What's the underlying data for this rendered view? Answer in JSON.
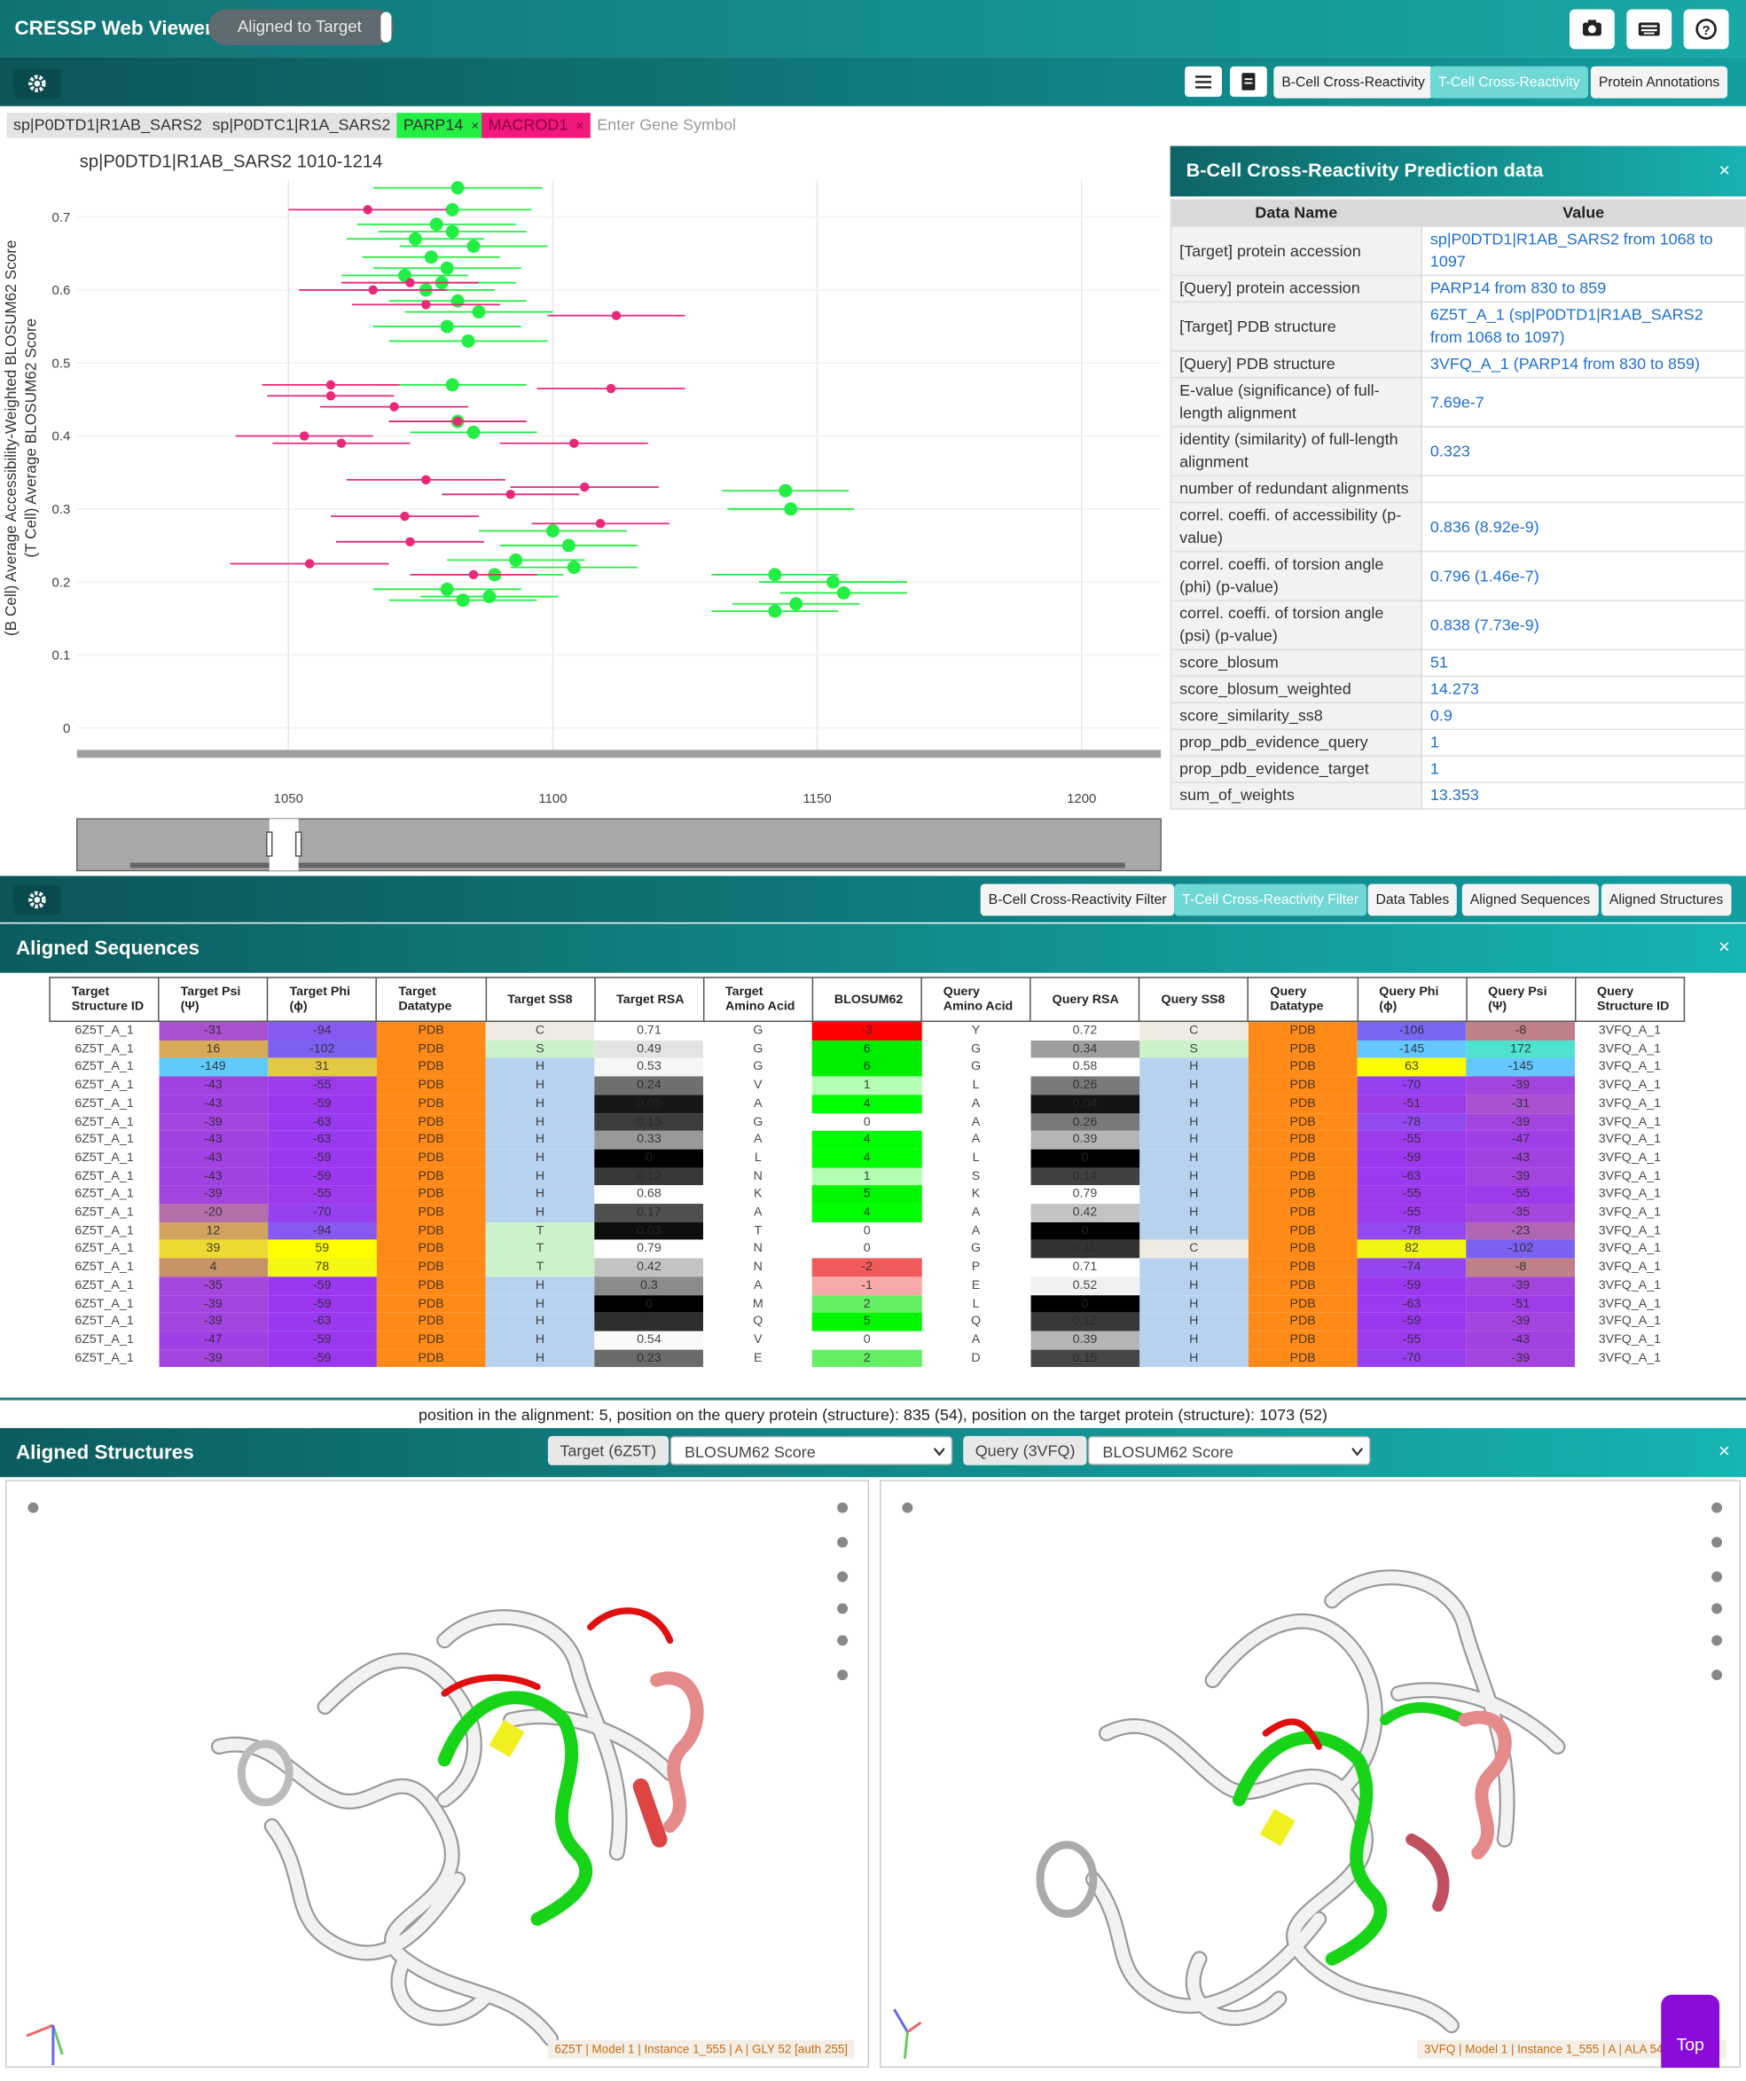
{
  "header": {
    "title": "CRESSP Web Viewer",
    "toggle": "Aligned to Target"
  },
  "toolbar1": {
    "buttons": [
      "B-Cell Cross-Reactivity",
      "T-Cell Cross-Reactivity",
      "Protein Annotations"
    ]
  },
  "tags": [
    "sp|P0DTD1|R1AB_SARS2",
    "sp|P0DTC1|R1A_SARS2",
    "PARP14",
    "MACROD1"
  ],
  "gene_placeholder": "Enter Gene Symbol",
  "plot": {
    "type": "scatter",
    "title": "sp|P0DTD1|R1AB_SARS2 1010-1214",
    "ylabel": [
      "(B Cell) Average Accessibility-Weighted BLOSUM62 Score",
      "(T Cell) Average BLOSUM62 Score"
    ],
    "xlim": [
      1010,
      1215
    ],
    "ylim": [
      -0.03,
      0.75
    ],
    "xticks": [
      1050,
      1100,
      1150,
      1200
    ],
    "yticks": [
      0,
      0.1,
      0.2,
      0.3,
      0.4,
      0.5,
      0.6,
      0.7
    ],
    "grid": true,
    "series": [
      {
        "color": "#22ee44",
        "x": [
          1082,
          1081,
          1078,
          1081,
          1074,
          1085,
          1077,
          1080,
          1072,
          1079,
          1076,
          1082,
          1086,
          1080,
          1084,
          1081,
          1082,
          1085,
          1100,
          1103,
          1093,
          1104,
          1089,
          1080,
          1088,
          1083,
          1144,
          1145,
          1142,
          1153,
          1155,
          1146,
          1142
        ],
        "values": [
          0.74,
          0.71,
          0.69,
          0.68,
          0.67,
          0.66,
          0.645,
          0.63,
          0.62,
          0.61,
          0.6,
          0.585,
          0.57,
          0.55,
          0.53,
          0.47,
          0.42,
          0.405,
          0.27,
          0.25,
          0.23,
          0.22,
          0.21,
          0.19,
          0.18,
          0.175,
          0.325,
          0.3,
          0.21,
          0.2,
          0.185,
          0.17,
          0.16
        ],
        "xerr": [
          16,
          15,
          15,
          14,
          13,
          14,
          13,
          14,
          12,
          14,
          13,
          13,
          14,
          14,
          15,
          14,
          13,
          12,
          14,
          13,
          13,
          12,
          13,
          14,
          13,
          14,
          12,
          12,
          12,
          14,
          12,
          12,
          12
        ]
      },
      {
        "color": "#e8287a",
        "x": [
          1065,
          1112,
          1066,
          1073,
          1076,
          1058,
          1111,
          1058,
          1070,
          1082,
          1053,
          1104,
          1060,
          1076,
          1106,
          1092,
          1072,
          1109,
          1073,
          1054,
          1085
        ],
        "values": [
          0.71,
          0.565,
          0.6,
          0.61,
          0.58,
          0.47,
          0.465,
          0.455,
          0.44,
          0.42,
          0.4,
          0.39,
          0.39,
          0.34,
          0.33,
          0.32,
          0.29,
          0.28,
          0.255,
          0.225,
          0.21
        ],
        "xerr": [
          15,
          13,
          14,
          13,
          14,
          13,
          14,
          12,
          14,
          13,
          13,
          14,
          13,
          15,
          14,
          13,
          14,
          13,
          14,
          15,
          12
        ]
      }
    ]
  },
  "info_panel": {
    "title": "B-Cell Cross-Reactivity Prediction data",
    "columns": [
      "Data Name",
      "Value"
    ],
    "rows": [
      [
        "[Target] protein accession",
        "sp|P0DTD1|R1AB_SARS2 from 1068 to 1097"
      ],
      [
        "[Query] protein accession",
        "PARP14 from 830 to 859"
      ],
      [
        "[Target] PDB structure",
        "6Z5T_A_1 (sp|P0DTD1|R1AB_SARS2 from 1068 to 1097)"
      ],
      [
        "[Query] PDB structure",
        "3VFQ_A_1 (PARP14 from 830 to 859)"
      ],
      [
        "E-value (significance) of full-length alignment",
        "7.69e-7"
      ],
      [
        "identity (similarity) of full-length alignment",
        0.323
      ],
      [
        "number of redundant alignments"
      ],
      [
        "correl. coeffi. of accessibility (p-value)",
        "0.836 (8.92e-9)"
      ],
      [
        "correl. coeffi. of torsion angle (phi) (p-value)",
        "0.796 (1.46e-7)"
      ],
      [
        "correl. coeffi. of torsion angle (psi) (p-value)",
        "0.838 (7.73e-9)"
      ],
      [
        "score_blosum",
        51
      ],
      [
        "score_blosum_weighted",
        14.273
      ],
      [
        "score_similarity_ss8",
        0.9
      ],
      [
        "prop_pdb_evidence_query",
        1
      ],
      [
        "prop_pdb_evidence_target",
        1
      ],
      [
        "sum_of_weights",
        13.353
      ]
    ]
  },
  "toolbar2": {
    "buttons": [
      "B-Cell Cross-Reactivity Filter",
      "T-Cell Cross-Reactivity Filter",
      "Data Tables",
      "Aligned Sequences",
      "Aligned Structures"
    ]
  },
  "sequences": {
    "title": "Aligned Sequences",
    "columns": [
      "Target Structure ID",
      "Target Psi (Ψ)",
      "Target Phi (ϕ)",
      "Target Datatype",
      "Target SS8",
      "Target RSA",
      "Target Amino Acid",
      "BLOSUM62",
      "Query Amino Acid",
      "Query RSA",
      "Query SS8",
      "Query Datatype",
      "Query Phi (ϕ)",
      "Query Psi (Ψ)",
      "Query Structure ID"
    ],
    "rows": [
      [
        "6Z5T_A_1",
        -31,
        -94,
        "PDB",
        "C",
        0.71,
        "G",
        -3,
        "Y",
        0.72,
        "C",
        "PDB",
        -106,
        -8,
        "3VFQ_A_1"
      ],
      [
        "6Z5T_A_1",
        16,
        -102,
        "PDB",
        "S",
        0.49,
        "G",
        6,
        "G",
        0.34,
        "S",
        "PDB",
        -145,
        172,
        "3VFQ_A_1"
      ],
      [
        "6Z5T_A_1",
        -149,
        31,
        "PDB",
        "H",
        0.53,
        "G",
        6,
        "G",
        0.58,
        "H",
        "PDB",
        63,
        -145,
        "3VFQ_A_1"
      ],
      [
        "6Z5T_A_1",
        -43,
        -55,
        "PDB",
        "H",
        0.24,
        "V",
        1,
        "L",
        0.26,
        "H",
        "PDB",
        -70,
        -39,
        "3VFQ_A_1"
      ],
      [
        "6Z5T_A_1",
        -43,
        -59,
        "PDB",
        "H",
        0.05,
        "A",
        4,
        "A",
        0.04,
        "H",
        "PDB",
        -51,
        -31,
        "3VFQ_A_1"
      ],
      [
        "6Z5T_A_1",
        -39,
        -63,
        "PDB",
        "H",
        0.13,
        "G",
        0,
        "A",
        0.26,
        "H",
        "PDB",
        -78,
        -39,
        "3VFQ_A_1"
      ],
      [
        "6Z5T_A_1",
        -43,
        -63,
        "PDB",
        "H",
        0.33,
        "A",
        4,
        "A",
        0.39,
        "H",
        "PDB",
        -55,
        -47,
        "3VFQ_A_1"
      ],
      [
        "6Z5T_A_1",
        -43,
        -59,
        "PDB",
        "H",
        0,
        "L",
        4,
        "L",
        0,
        "H",
        "PDB",
        -59,
        -43,
        "3VFQ_A_1"
      ],
      [
        "6Z5T_A_1",
        -43,
        -59,
        "PDB",
        "H",
        0.12,
        "N",
        1,
        "S",
        0.14,
        "H",
        "PDB",
        -63,
        -39,
        "3VFQ_A_1"
      ],
      [
        "6Z5T_A_1",
        -39,
        -55,
        "PDB",
        "H",
        0.68,
        "K",
        5,
        "K",
        0.79,
        "H",
        "PDB",
        -55,
        -55,
        "3VFQ_A_1"
      ],
      [
        "6Z5T_A_1",
        -20,
        -70,
        "PDB",
        "H",
        0.17,
        "A",
        4,
        "A",
        0.42,
        "H",
        "PDB",
        -55,
        -35,
        "3VFQ_A_1"
      ],
      [
        "6Z5T_A_1",
        12,
        -94,
        "PDB",
        "T",
        0.03,
        "T",
        0,
        "A",
        0,
        "H",
        "PDB",
        -78,
        -23,
        "3VFQ_A_1"
      ],
      [
        "6Z5T_A_1",
        39,
        59,
        "PDB",
        "T",
        0.79,
        "N",
        0,
        "G",
        0.11,
        "C",
        "PDB",
        82,
        -102,
        "3VFQ_A_1"
      ],
      [
        "6Z5T_A_1",
        4,
        78,
        "PDB",
        "T",
        0.42,
        "N",
        -2,
        "P",
        0.71,
        "H",
        "PDB",
        -74,
        -8,
        "3VFQ_A_1"
      ],
      [
        "6Z5T_A_1",
        -35,
        -59,
        "PDB",
        "H",
        0.3,
        "A",
        -1,
        "E",
        0.52,
        "H",
        "PDB",
        -59,
        -39,
        "3VFQ_A_1"
      ],
      [
        "6Z5T_A_1",
        -39,
        -59,
        "PDB",
        "H",
        0,
        "M",
        2,
        "L",
        0,
        "H",
        "PDB",
        -63,
        -51,
        "3VFQ_A_1"
      ],
      [
        "6Z5T_A_1",
        -39,
        -63,
        "PDB",
        "H",
        0.1,
        "Q",
        5,
        "Q",
        0.12,
        "H",
        "PDB",
        -59,
        -39,
        "3VFQ_A_1"
      ],
      [
        "6Z5T_A_1",
        -47,
        -59,
        "PDB",
        "H",
        0.54,
        "V",
        0,
        "A",
        0.39,
        "H",
        "PDB",
        -55,
        -43,
        "3VFQ_A_1"
      ],
      [
        "6Z5T_A_1",
        -39,
        -59,
        "PDB",
        "H",
        0.23,
        "E",
        2,
        "D",
        0.15,
        "H",
        "PDB",
        -70,
        -39,
        "3VFQ_A_1"
      ]
    ],
    "status": "position in the alignment: 5, position on the query protein (structure): 835 (54), position on the target protein (structure): 1073 (52)"
  },
  "structures": {
    "title": "Aligned Structures",
    "target_button": "Target (6Z5T)",
    "target_select": "BLOSUM62 Score",
    "query_button": "Query (3VFQ)",
    "query_select": "BLOSUM62 Score",
    "target_caption": "6Z5T | Model 1 | Instance 1_555 | A | GLY 52 [auth 255]",
    "query_caption": "3VFQ | Model 1 | Instance 1_555 | A | ALA 54 [auth 835]",
    "top_button": "Top"
  }
}
